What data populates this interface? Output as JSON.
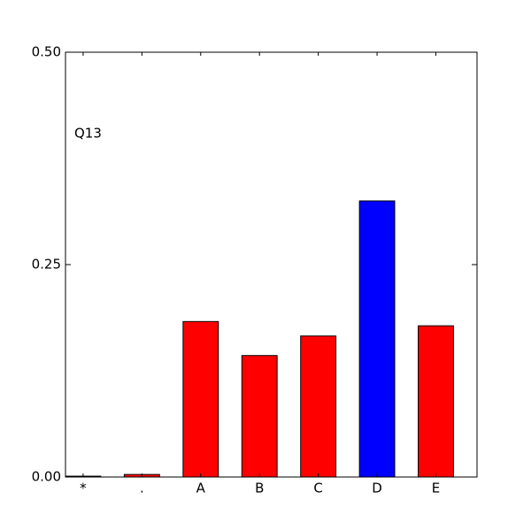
{
  "chart_data": {
    "type": "bar",
    "annotation": "Q13",
    "categories": [
      "*",
      ".",
      "A",
      "B",
      "C",
      "D",
      "E"
    ],
    "values": [
      0.001,
      0.003,
      0.183,
      0.143,
      0.166,
      0.325,
      0.178
    ],
    "colors": [
      "#ff0000",
      "#ff0000",
      "#ff0000",
      "#ff0000",
      "#ff0000",
      "#0000ff",
      "#ff0000"
    ],
    "ylim": [
      0,
      0.5
    ],
    "yticks": [
      {
        "value": 0,
        "label": "0.00"
      },
      {
        "value": 0.25,
        "label": "0.25"
      },
      {
        "value": 0.5,
        "label": "0.50"
      }
    ]
  }
}
